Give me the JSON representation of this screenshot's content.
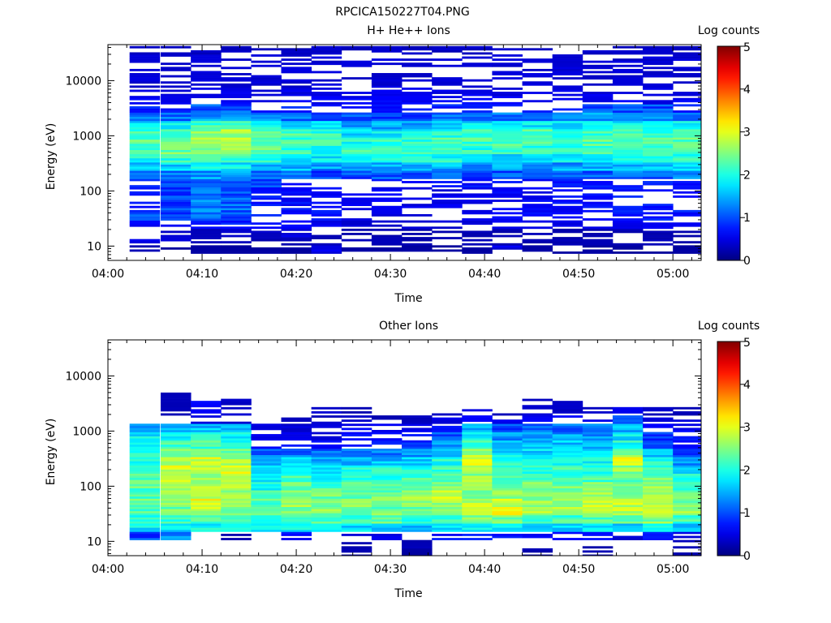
{
  "page_title": "RPCICA150227T04.PNG",
  "chart_data": [
    {
      "type": "heatmap",
      "title": "H+ He++ Ions",
      "xlabel": "Time",
      "ylabel": "Energy (eV)",
      "colorbar_label": "Log counts",
      "colorbar_ticks": [
        "0",
        "1",
        "2",
        "3",
        "4",
        "5"
      ],
      "colorbar_range": [
        0,
        5
      ],
      "colormap": "jet",
      "x_ticks": [
        "04:00",
        "04:10",
        "04:20",
        "04:30",
        "04:40",
        "04:50",
        "05:00"
      ],
      "x_range_minutes": [
        0,
        63
      ],
      "y_scale": "log",
      "y_ticks": [
        "10",
        "100",
        "1000",
        "10000"
      ],
      "y_range": [
        5.5,
        45000
      ],
      "time_bins_start_minutes": [
        2.3,
        5.6,
        8.8,
        12.0,
        15.2,
        18.4,
        21.6,
        24.8,
        28.0,
        31.2,
        34.4,
        37.6,
        40.8,
        44.0,
        47.2,
        50.4,
        53.6,
        56.8,
        60.0
      ],
      "time_bin_width_minutes": 3.2,
      "energy_bins_eV": [
        8.7,
        12.3,
        17.4,
        24.6,
        34.8,
        49.2,
        69.6,
        98.4,
        139,
        197,
        278,
        394,
        557,
        787,
        1113,
        1574,
        2226,
        3148,
        4452,
        6296,
        8904,
        12592,
        17808,
        25184,
        35616
      ],
      "profiles": [
        [
          0.3,
          0.6,
          0.5,
          0.8,
          1.0,
          0.9,
          0.8,
          0.9,
          0.9,
          1.0,
          1.6,
          2.0,
          2.2,
          2.3,
          2.1,
          1.8,
          1.1,
          0.9,
          0.7,
          0.6,
          0.5,
          0.5,
          0.5,
          0.5,
          0.4
        ],
        [
          0.2,
          0.5,
          0.5,
          0.7,
          1.0,
          1.0,
          1.0,
          1.0,
          1.1,
          1.2,
          1.7,
          2.1,
          2.4,
          2.5,
          2.3,
          1.9,
          1.2,
          0.9,
          0.7,
          0.6,
          0.5,
          0.5,
          0.5,
          0.5,
          0.4
        ],
        [
          0.2,
          0.4,
          0.4,
          0.8,
          1.1,
          1.2,
          1.3,
          1.2,
          1.2,
          1.4,
          1.9,
          2.2,
          2.4,
          2.6,
          2.5,
          2.1,
          1.4,
          1.0,
          0.7,
          0.6,
          0.5,
          0.5,
          0.5,
          0.5,
          0.4
        ],
        [
          0.2,
          0.4,
          0.4,
          0.9,
          1.0,
          1.1,
          1.1,
          1.0,
          1.1,
          1.3,
          1.8,
          2.2,
          2.5,
          2.7,
          2.7,
          2.2,
          1.5,
          1.0,
          0.7,
          0.6,
          0.5,
          0.5,
          0.5,
          0.5,
          0.4
        ],
        [
          0.2,
          0.3,
          0.4,
          0.8,
          0.9,
          0.9,
          0.9,
          0.9,
          1.0,
          1.2,
          1.6,
          2.0,
          2.3,
          2.4,
          2.3,
          1.9,
          1.3,
          0.9,
          0.7,
          0.6,
          0.5,
          0.5,
          0.5,
          0.5,
          0.4
        ],
        [
          0.2,
          0.3,
          0.6,
          0.7,
          0.8,
          0.8,
          0.8,
          0.8,
          0.9,
          1.1,
          1.5,
          1.9,
          2.1,
          2.2,
          2.2,
          1.8,
          1.2,
          0.9,
          0.7,
          0.6,
          0.5,
          0.5,
          0.5,
          0.5,
          0.4
        ],
        [
          0.6,
          0.3,
          0.3,
          0.6,
          0.8,
          0.8,
          0.8,
          0.8,
          0.9,
          1.0,
          1.4,
          1.8,
          2.0,
          2.2,
          2.1,
          1.7,
          1.1,
          0.8,
          0.7,
          0.6,
          0.5,
          0.5,
          0.5,
          0.5,
          0.4
        ],
        [
          0.2,
          0.3,
          0.3,
          0.5,
          0.6,
          0.7,
          0.7,
          0.7,
          0.8,
          1.0,
          1.4,
          1.9,
          2.1,
          2.0,
          1.7,
          1.4,
          1.0,
          0.8,
          0.7,
          0.6,
          0.5,
          0.5,
          0.5,
          0.5,
          0.4
        ],
        [
          0.2,
          0.3,
          0.3,
          0.5,
          0.6,
          0.6,
          0.7,
          0.7,
          0.8,
          1.1,
          1.5,
          2.0,
          2.2,
          2.1,
          1.8,
          1.4,
          1.0,
          0.8,
          0.7,
          0.6,
          0.5,
          0.5,
          0.5,
          0.5,
          0.4
        ],
        [
          0.2,
          0.3,
          0.3,
          0.5,
          0.6,
          0.6,
          0.6,
          0.6,
          0.8,
          1.0,
          1.5,
          2.0,
          2.2,
          2.1,
          1.8,
          1.4,
          1.0,
          0.8,
          0.7,
          0.6,
          0.5,
          0.5,
          0.5,
          0.5,
          0.4
        ],
        [
          0.2,
          0.3,
          0.3,
          0.5,
          0.6,
          0.6,
          0.6,
          0.6,
          0.8,
          1.0,
          1.5,
          2.0,
          2.3,
          2.3,
          2.1,
          1.8,
          1.2,
          0.9,
          0.7,
          0.6,
          0.5,
          0.5,
          0.5,
          0.5,
          0.4
        ],
        [
          0.2,
          0.3,
          0.3,
          0.5,
          0.6,
          0.6,
          0.6,
          0.6,
          0.8,
          1.0,
          1.4,
          1.9,
          2.1,
          2.2,
          2.1,
          1.7,
          1.2,
          0.9,
          0.7,
          0.6,
          0.5,
          0.5,
          0.5,
          0.5,
          0.4
        ],
        [
          0.6,
          0.3,
          0.3,
          0.6,
          0.7,
          0.7,
          0.7,
          0.7,
          0.8,
          1.0,
          1.4,
          1.8,
          2.1,
          2.3,
          2.2,
          1.8,
          1.2,
          0.9,
          0.7,
          0.6,
          0.5,
          0.5,
          0.5,
          0.5,
          0.4
        ],
        [
          0.2,
          0.3,
          0.3,
          0.6,
          0.8,
          0.8,
          0.7,
          0.7,
          0.8,
          1.0,
          1.4,
          1.8,
          2.1,
          2.3,
          2.2,
          1.8,
          1.2,
          0.9,
          0.7,
          0.6,
          0.5,
          0.5,
          0.5,
          0.5,
          0.4
        ],
        [
          0.2,
          0.3,
          0.3,
          0.6,
          0.8,
          0.8,
          0.8,
          0.8,
          0.9,
          1.0,
          1.4,
          1.8,
          2.1,
          2.2,
          2.1,
          1.8,
          1.2,
          0.9,
          0.7,
          0.6,
          0.5,
          0.5,
          0.5,
          0.5,
          0.4
        ],
        [
          0.2,
          0.3,
          0.3,
          0.7,
          0.8,
          0.9,
          0.8,
          0.8,
          0.9,
          1.1,
          1.5,
          1.9,
          2.2,
          2.3,
          2.2,
          1.9,
          1.4,
          1.0,
          0.7,
          0.6,
          0.5,
          0.5,
          0.5,
          0.5,
          0.4
        ],
        [
          0.2,
          0.3,
          0.3,
          0.7,
          0.9,
          0.9,
          0.9,
          0.8,
          0.9,
          1.1,
          1.6,
          2.0,
          2.3,
          2.3,
          2.2,
          1.9,
          1.4,
          1.0,
          0.7,
          0.6,
          0.5,
          0.5,
          0.5,
          0.5,
          0.4
        ],
        [
          0.2,
          0.3,
          0.3,
          0.7,
          0.9,
          0.9,
          0.9,
          0.8,
          0.9,
          1.1,
          1.6,
          2.0,
          2.2,
          2.3,
          2.1,
          1.8,
          1.3,
          1.0,
          0.7,
          0.6,
          0.5,
          0.5,
          0.5,
          0.5,
          0.4
        ],
        [
          0.2,
          0.3,
          0.3,
          0.7,
          0.8,
          0.9,
          0.8,
          0.8,
          0.9,
          1.2,
          1.7,
          2.1,
          2.3,
          2.3,
          2.1,
          1.8,
          1.3,
          0.9,
          0.7,
          0.6,
          0.5,
          0.5,
          0.5,
          0.5,
          0.4
        ]
      ]
    },
    {
      "type": "heatmap",
      "title": "Other Ions",
      "xlabel": "Time",
      "ylabel": "Energy (eV)",
      "colorbar_label": "Log counts",
      "colorbar_ticks": [
        "0",
        "1",
        "2",
        "3",
        "4",
        "5"
      ],
      "colorbar_range": [
        0,
        5
      ],
      "colormap": "jet",
      "x_ticks": [
        "04:00",
        "04:10",
        "04:20",
        "04:30",
        "04:40",
        "04:50",
        "05:00"
      ],
      "x_range_minutes": [
        0,
        63
      ],
      "y_scale": "log",
      "y_ticks": [
        "10",
        "100",
        "1000",
        "10000"
      ],
      "y_range": [
        5.5,
        45000
      ],
      "time_bins_start_minutes": [
        2.3,
        5.6,
        8.8,
        12.0,
        15.2,
        18.4,
        21.6,
        24.8,
        28.0,
        31.2,
        34.4,
        37.6,
        40.8,
        44.0,
        47.2,
        50.4,
        53.6,
        56.8,
        60.0
      ],
      "time_bin_width_minutes": 3.2,
      "energy_bins_eV": [
        6.3,
        8.9,
        12.6,
        17.8,
        25.2,
        35.6,
        50.4,
        71.3,
        101,
        143,
        202,
        286,
        404,
        572,
        809,
        1144,
        1618,
        2289,
        3237,
        4579
      ],
      "profiles": [
        [
          0.0,
          0.0,
          1.0,
          1.8,
          2.0,
          2.3,
          2.4,
          2.3,
          2.3,
          2.3,
          2.2,
          2.1,
          2.1,
          2.0,
          1.8,
          1.5,
          0.0,
          0.0,
          0.0,
          0.0
        ],
        [
          0.0,
          0.0,
          1.3,
          1.8,
          2.1,
          2.4,
          2.5,
          2.6,
          2.7,
          2.8,
          2.9,
          2.7,
          2.4,
          2.2,
          1.9,
          1.6,
          0.4,
          0.3,
          0.3,
          0.3
        ],
        [
          0.0,
          0.0,
          0.0,
          1.9,
          2.3,
          2.8,
          3.0,
          2.9,
          2.7,
          2.6,
          2.8,
          2.9,
          2.6,
          2.2,
          1.9,
          1.6,
          0.6,
          0.8,
          0.8,
          0.0
        ],
        [
          0.0,
          0.0,
          0.3,
          1.8,
          2.1,
          2.5,
          2.6,
          2.6,
          2.7,
          2.6,
          2.9,
          2.7,
          2.4,
          2.1,
          1.8,
          1.5,
          0.5,
          0.5,
          0.4,
          0.0
        ],
        [
          0.0,
          0.0,
          0.0,
          1.8,
          2.1,
          2.3,
          2.3,
          2.2,
          2.0,
          1.9,
          1.8,
          1.6,
          1.1,
          0.7,
          0.7,
          0.5,
          0.0,
          0.0,
          0.0,
          0.0
        ],
        [
          0.0,
          0.0,
          0.8,
          1.8,
          2.2,
          2.5,
          2.6,
          2.5,
          2.4,
          2.2,
          2.0,
          1.7,
          1.2,
          0.8,
          0.7,
          0.5,
          0.3,
          0.4,
          0.0,
          0.0
        ],
        [
          0.0,
          0.0,
          0.0,
          1.7,
          2.3,
          2.5,
          2.5,
          2.4,
          2.2,
          2.0,
          1.8,
          1.5,
          1.1,
          0.7,
          0.6,
          0.5,
          0.4,
          0.5,
          0.0,
          0.0
        ],
        [
          0.3,
          0.3,
          0.5,
          1.7,
          2.1,
          2.4,
          2.5,
          2.3,
          2.2,
          2.0,
          1.9,
          1.6,
          1.2,
          0.9,
          0.9,
          0.7,
          0.4,
          0.3,
          0.0,
          0.0
        ],
        [
          0.0,
          0.0,
          0.6,
          1.7,
          2.3,
          2.4,
          2.5,
          2.4,
          2.3,
          2.1,
          2.0,
          1.6,
          1.2,
          0.9,
          0.8,
          0.6,
          0.3,
          0.0,
          0.0,
          0.0
        ],
        [
          0.2,
          0.3,
          0.4,
          1.6,
          2.1,
          2.3,
          2.5,
          2.6,
          2.4,
          2.2,
          2.0,
          1.7,
          1.3,
          1.0,
          0.8,
          0.7,
          0.4,
          0.0,
          0.0,
          0.0
        ],
        [
          0.0,
          0.0,
          0.8,
          1.8,
          2.2,
          2.4,
          2.7,
          2.9,
          2.6,
          2.3,
          2.2,
          2.0,
          1.7,
          1.3,
          1.1,
          0.9,
          0.6,
          0.4,
          0.0,
          0.0
        ],
        [
          0.0,
          0.0,
          0.9,
          1.9,
          2.4,
          2.7,
          2.8,
          2.6,
          2.5,
          2.6,
          2.9,
          3.0,
          2.7,
          2.2,
          1.8,
          1.5,
          0.9,
          0.5,
          0.0,
          0.0
        ],
        [
          0.0,
          0.0,
          0.8,
          1.8,
          2.5,
          3.1,
          2.8,
          2.5,
          2.3,
          2.2,
          2.2,
          2.0,
          1.8,
          1.5,
          1.3,
          1.0,
          0.6,
          0.3,
          0.0,
          0.0
        ],
        [
          0.3,
          0.0,
          0.8,
          1.6,
          2.2,
          2.7,
          2.6,
          2.5,
          2.4,
          2.2,
          2.1,
          1.9,
          1.7,
          1.5,
          1.3,
          1.1,
          0.8,
          0.5,
          0.4,
          0.0
        ],
        [
          0.0,
          0.0,
          0.8,
          1.6,
          2.2,
          2.7,
          2.7,
          2.6,
          2.4,
          2.2,
          2.1,
          2.0,
          1.9,
          1.6,
          1.4,
          1.1,
          0.8,
          0.4,
          0.4,
          0.0
        ],
        [
          0.3,
          0.3,
          0.8,
          1.8,
          2.3,
          2.8,
          2.8,
          2.6,
          2.4,
          2.2,
          2.1,
          1.9,
          1.8,
          1.6,
          1.3,
          1.1,
          0.7,
          0.4,
          0.0,
          0.0
        ],
        [
          0.0,
          0.0,
          0.5,
          1.7,
          2.4,
          2.8,
          2.8,
          2.6,
          2.4,
          2.3,
          2.6,
          3.1,
          2.5,
          2.0,
          1.8,
          1.5,
          1.0,
          0.6,
          0.0,
          0.0
        ],
        [
          0.0,
          0.0,
          0.8,
          1.8,
          2.5,
          2.9,
          2.8,
          2.7,
          2.6,
          2.4,
          2.2,
          2.0,
          1.6,
          1.2,
          1.0,
          0.8,
          0.5,
          0.4,
          0.3,
          0.0
        ],
        [
          0.3,
          0.3,
          0.5,
          1.6,
          2.2,
          2.6,
          2.5,
          2.3,
          2.1,
          1.9,
          1.6,
          1.3,
          1.0,
          0.8,
          0.8,
          0.7,
          0.5,
          0.3,
          0.0,
          0.0
        ]
      ]
    }
  ]
}
